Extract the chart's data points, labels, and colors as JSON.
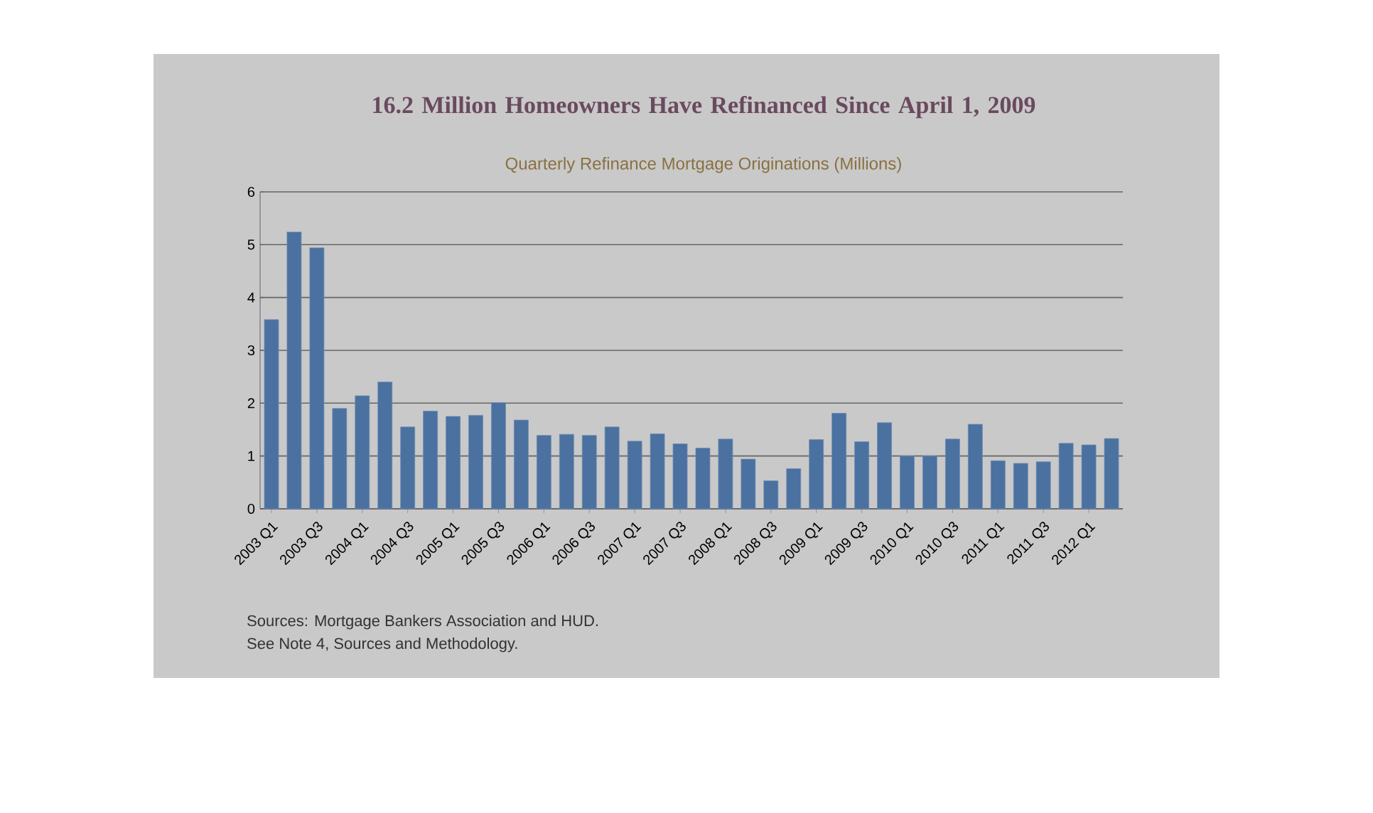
{
  "chart_data": {
    "type": "bar",
    "title": "16.2 Million Homeowners Have Refinanced Since April 1, 2009",
    "subtitle": "Quarterly Refinance Mortgage Originations (Millions)",
    "categories": [
      "2003 Q1",
      null,
      "2003 Q3",
      null,
      "2004 Q1",
      null,
      "2004 Q3",
      null,
      "2005 Q1",
      null,
      "2005 Q3",
      null,
      "2006 Q1",
      null,
      "2006 Q3",
      null,
      "2007 Q1",
      null,
      "2007 Q3",
      null,
      "2008 Q1",
      null,
      "2008 Q3",
      null,
      "2009 Q1",
      null,
      "2009 Q3",
      null,
      "2010 Q1",
      null,
      "2010 Q3",
      null,
      "2011 Q1",
      null,
      "2011 Q3",
      null,
      "2012 Q1",
      null
    ],
    "values": [
      3.58,
      5.24,
      4.94,
      1.9,
      2.14,
      2.4,
      1.55,
      1.85,
      1.75,
      1.77,
      2.01,
      1.68,
      1.39,
      1.41,
      1.39,
      1.55,
      1.28,
      1.42,
      1.23,
      1.15,
      1.32,
      0.94,
      0.53,
      0.76,
      1.31,
      1.81,
      1.27,
      1.63,
      1.0,
      1.0,
      1.32,
      1.6,
      0.91,
      0.86,
      0.89,
      1.24,
      1.21,
      1.33
    ],
    "color": "#4a71a0",
    "ylim": [
      0,
      6
    ],
    "yticks": [
      0,
      1,
      2,
      3,
      4,
      5,
      6
    ],
    "grid": "y",
    "annotations": [
      "Sources:  Mortgage Bankers Association and HUD.",
      "See Note 4, Sources and Methodology."
    ]
  }
}
